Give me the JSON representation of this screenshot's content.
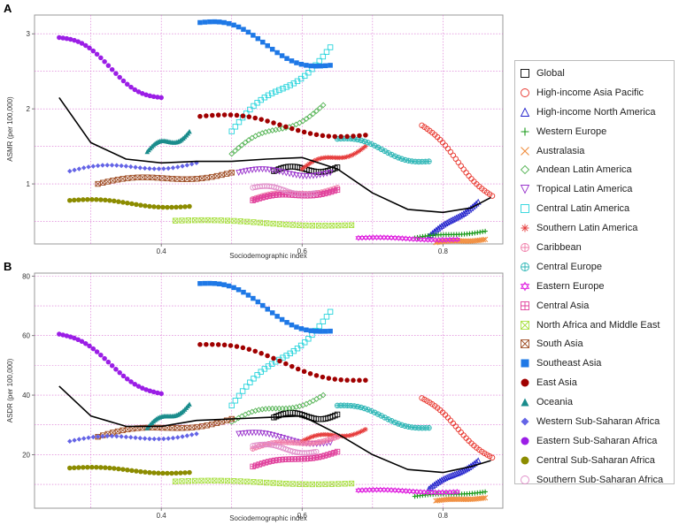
{
  "panels": [
    {
      "label": "A",
      "xlabel": "Sociodemographic index",
      "ylabel": "ASMR (per 100,000)",
      "xlim": [
        0.22,
        0.885
      ],
      "ylim": [
        0.2,
        3.25
      ],
      "yticks": [
        1,
        2,
        3
      ],
      "ytick_labels": [
        "1",
        "2",
        "3"
      ],
      "xticks": [
        0.4,
        0.6,
        0.8
      ],
      "xtick_labels": [
        "0.4",
        "0.6",
        "0.8"
      ],
      "grid_y": [
        0.5,
        1,
        1.5,
        2,
        2.5,
        3
      ],
      "grid_x": [
        0.3,
        0.4,
        0.5,
        0.6,
        0.7,
        0.8
      ],
      "global_curve": {
        "x": [
          0.255,
          0.3,
          0.35,
          0.4,
          0.45,
          0.5,
          0.55,
          0.6,
          0.65,
          0.7,
          0.75,
          0.8,
          0.84,
          0.868
        ],
        "y": [
          2.15,
          1.55,
          1.33,
          1.28,
          1.3,
          1.3,
          1.33,
          1.35,
          1.2,
          0.88,
          0.66,
          0.62,
          0.68,
          0.82
        ]
      }
    },
    {
      "label": "B",
      "xlabel": "Sociodemographic index",
      "ylabel": "ASDR (per 100,000)",
      "xlim": [
        0.22,
        0.885
      ],
      "ylim": [
        2,
        81
      ],
      "yticks": [
        20,
        40,
        60,
        80
      ],
      "ytick_labels": [
        "20",
        "40",
        "60",
        "80"
      ],
      "xticks": [
        0.4,
        0.6,
        0.8
      ],
      "xtick_labels": [
        "0.4",
        "0.6",
        "0.8"
      ],
      "grid_y": [
        10,
        20,
        30,
        40,
        50,
        60,
        70,
        80
      ],
      "grid_x": [
        0.3,
        0.4,
        0.5,
        0.6,
        0.7,
        0.8
      ],
      "global_curve": {
        "x": [
          0.255,
          0.3,
          0.35,
          0.4,
          0.45,
          0.5,
          0.55,
          0.6,
          0.65,
          0.7,
          0.75,
          0.8,
          0.84,
          0.868
        ],
        "y": [
          43,
          33,
          29.5,
          29.5,
          31.5,
          32,
          32.5,
          33,
          27,
          20,
          15,
          14,
          16,
          18
        ]
      }
    }
  ],
  "chart_data": {
    "type": "scatter",
    "title": "",
    "xlabel": "Sociodemographic index",
    "panels": [
      "A: ASMR (per 100,000)",
      "B: ASDR (per 100,000)"
    ],
    "series": [
      {
        "name": "Global",
        "color": "#000000",
        "marker": "square-open",
        "x_range": [
          0.56,
          0.65
        ],
        "A": [
          1.17,
          1.22
        ],
        "B": [
          32.5,
          33.5
        ]
      },
      {
        "name": "High-income Asia Pacific",
        "color": "#e8342b",
        "marker": "circle-open",
        "x_range": [
          0.77,
          0.87
        ],
        "A": [
          1.78,
          0.84
        ],
        "B": [
          39.0,
          19.0
        ]
      },
      {
        "name": "High-income North America",
        "color": "#2020cc",
        "marker": "triangle-open",
        "x_range": [
          0.78,
          0.85
        ],
        "A": [
          0.3,
          0.76
        ],
        "B": [
          8.5,
          18.0
        ]
      },
      {
        "name": "Western Europe",
        "color": "#1a9a1a",
        "marker": "plus",
        "x_range": [
          0.76,
          0.86
        ],
        "A": [
          0.28,
          0.37
        ],
        "B": [
          6.0,
          7.5
        ]
      },
      {
        "name": "Australasia",
        "color": "#f08c3c",
        "marker": "x",
        "x_range": [
          0.79,
          0.86
        ],
        "A": [
          0.22,
          0.26
        ],
        "B": [
          4.5,
          5.5
        ]
      },
      {
        "name": "Andean Latin America",
        "color": "#56b456",
        "marker": "diamond-open",
        "x_range": [
          0.5,
          0.63
        ],
        "A": [
          1.4,
          2.05
        ],
        "B": [
          31.0,
          40.0
        ]
      },
      {
        "name": "Tropical Latin America",
        "color": "#9933cc",
        "marker": "triangle-down-open",
        "x_range": [
          0.51,
          0.64
        ],
        "A": [
          1.15,
          1.15
        ],
        "B": [
          27.0,
          24.0
        ]
      },
      {
        "name": "Central Latin America",
        "color": "#28d4dc",
        "marker": "square-open",
        "x_range": [
          0.5,
          0.64
        ],
        "A": [
          1.7,
          2.82
        ],
        "B": [
          36.5,
          68.0
        ]
      },
      {
        "name": "Southern Latin America",
        "color": "#e63c3c",
        "marker": "asterisk",
        "x_range": [
          0.6,
          0.69
        ],
        "A": [
          1.2,
          1.5
        ],
        "B": [
          24.5,
          28.5
        ]
      },
      {
        "name": "Caribbean",
        "color": "#f07ca8",
        "marker": "circle-plus",
        "x_range": [
          0.53,
          0.65
        ],
        "A": [
          0.8,
          0.95
        ],
        "B": [
          22.0,
          26.0
        ]
      },
      {
        "name": "Central Europe",
        "color": "#28b4b4",
        "marker": "circle-plus",
        "x_range": [
          0.65,
          0.78
        ],
        "A": [
          1.6,
          1.3
        ],
        "B": [
          36.5,
          29.0
        ]
      },
      {
        "name": "Eastern Europe",
        "color": "#e028e0",
        "marker": "star-of-david",
        "x_range": [
          0.68,
          0.82
        ],
        "A": [
          0.28,
          0.26
        ],
        "B": [
          8.0,
          7.5
        ]
      },
      {
        "name": "Central Asia",
        "color": "#e0409c",
        "marker": "square-plus",
        "x_range": [
          0.53,
          0.65
        ],
        "A": [
          0.78,
          0.92
        ],
        "B": [
          16.0,
          21.0
        ]
      },
      {
        "name": "North Africa and Middle East",
        "color": "#a8e040",
        "marker": "square-x",
        "x_range": [
          0.42,
          0.67
        ],
        "A": [
          0.51,
          0.45
        ],
        "B": [
          11.0,
          10.3
        ]
      },
      {
        "name": "South Asia",
        "color": "#a05028",
        "marker": "square-x",
        "x_range": [
          0.31,
          0.5
        ],
        "A": [
          1.0,
          1.15
        ],
        "B": [
          26.0,
          32.0
        ]
      },
      {
        "name": "Southeast Asia",
        "color": "#1e78e6",
        "marker": "square",
        "x_range": [
          0.455,
          0.64
        ],
        "A": [
          3.15,
          2.58
        ],
        "B": [
          77.5,
          61.5
        ]
      },
      {
        "name": "East Asia",
        "color": "#a00000",
        "marker": "circle",
        "x_range": [
          0.455,
          0.69
        ],
        "A": [
          1.9,
          1.65
        ],
        "B": [
          57.0,
          45.0
        ]
      },
      {
        "name": "Oceania",
        "color": "#1a8c8c",
        "marker": "triangle",
        "x_range": [
          0.38,
          0.44
        ],
        "A": [
          1.43,
          1.7
        ],
        "B": [
          29.0,
          37.0
        ]
      },
      {
        "name": "Western Sub-Saharan Africa",
        "color": "#6464e6",
        "marker": "diamond",
        "x_range": [
          0.27,
          0.45
        ],
        "A": [
          1.17,
          1.28
        ],
        "B": [
          24.5,
          27.0
        ]
      },
      {
        "name": "Eastern Sub-Saharan Africa",
        "color": "#9b1ee6",
        "marker": "circle",
        "x_range": [
          0.255,
          0.4
        ],
        "A": [
          2.95,
          2.15
        ],
        "B": [
          60.5,
          40.5
        ]
      },
      {
        "name": "Central Sub-Saharan Africa",
        "color": "#8c8c00",
        "marker": "circle",
        "x_range": [
          0.27,
          0.44
        ],
        "A": [
          0.78,
          0.7
        ],
        "B": [
          15.5,
          14.0
        ]
      },
      {
        "name": "Southern Sub-Saharan Africa",
        "color": "#e08cc8",
        "marker": "circle-open",
        "x_range": [
          0.53,
          0.62
        ],
        "A": [
          0.95,
          0.88
        ],
        "B": [
          23.0,
          21.0
        ]
      }
    ]
  }
}
